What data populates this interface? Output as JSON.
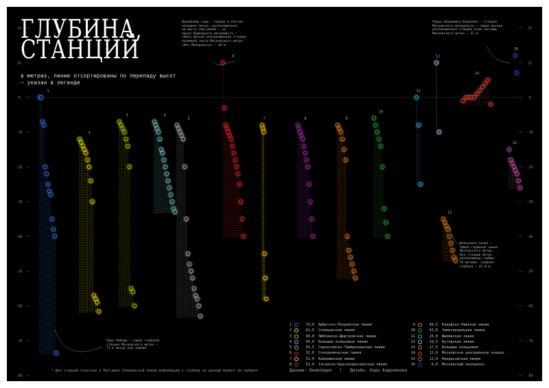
{
  "title_line1": "ГЛУБИНА,",
  "title_line2": "СТАНЦИЙ",
  "subtitle": "в метрах, линии отсортированы по перепаду высот — указан в легенде",
  "annotations": {
    "vorobyovy": "Воробьёвы горы — первая в России\nназемная метро, расположенная\nна мосту над рекой — на\nярусе Лужнецкого метромоста —\nсамая высоко расположенная станция\nназемной части Московского метро\n(без Монорельса) — 10 м",
    "korolyova": "Улица Академика Королёва — станция\nМосковского монорельса — самая высоко\nрасположенная станция всей системы\nМосковского метро — 12 м",
    "park_pobedy": "Парк Победы — самая глубокая\nстанция Московского метро —\n73,6 метра под землёй",
    "koltsevaya": "Кольцевая линия —\nсамая глубокая линия\nМосковского метро.\nВсе станции метро\nрасположены глубже\n35 метров. Средняя\nглубина — 41,0 м"
  },
  "footnote": "* Для станций Спасская и Пыхтящая Солнцевской линии информации о глубине на данный момент не найдено",
  "credits_data": "Данные: Википедия",
  "credits_design": "Дизайн: Надя Андриянова",
  "legend": [
    {
      "num": "1",
      "value": "73,6",
      "name": "Арбатско-Покровская линия",
      "color": "#3b6fd9"
    },
    {
      "num": "2",
      "value": "61,6",
      "name": "Солнцевская линия",
      "color": "#f2e200"
    },
    {
      "num": "3",
      "value": "60,0",
      "name": "Люблинско-Дмитровская линия",
      "color": "#b5d900"
    },
    {
      "num": "4",
      "value": "56,0",
      "name": "Большая кольцевая линия",
      "color": "#7ec8c8"
    },
    {
      "num": "5",
      "value": "55,5",
      "name": "Серпуховско-Тимирязевская линия",
      "color": "#b4b4b4"
    },
    {
      "num": "6",
      "value": "52,0",
      "name": "Сокольническая линия",
      "color": "#e8262c"
    },
    {
      "num": "7",
      "value": "51,0",
      "name": "Калининская линия",
      "color": "#ffcf00"
    },
    {
      "num": "8",
      "value": "51,0",
      "name": "Таганско-Краснопресненская линия",
      "color": "#9a2fa0"
    },
    {
      "num": "9",
      "value": "46,5",
      "name": "Калужско-Рижская линия",
      "color": "#f07e20"
    },
    {
      "num": "10",
      "value": "42,0",
      "name": "Замоскворецкая линия",
      "color": "#2d9e47"
    },
    {
      "num": "11",
      "value": "25,0",
      "name": "Филёвская линия",
      "color": "#29b8e6"
    },
    {
      "num": "12",
      "value": "19,5",
      "name": "Бутовская линия",
      "color": "#a8c5e8"
    },
    {
      "num": "13",
      "value": "17,5",
      "name": "Большая кольцевая",
      "color": "#e08020"
    },
    {
      "num": "14",
      "value": "12,0",
      "name": "Московское центральное кольцо",
      "color": "#e8453c"
    },
    {
      "num": "15",
      "value": "12,0",
      "name": "Некрасовская линия",
      "color": "#cc55aa"
    },
    {
      "num": "16",
      "value": "6,0",
      "name": "Московский монорельс",
      "color": "#2a4ab0"
    }
  ],
  "chart_data": {
    "type": "scatter",
    "ylim": [
      -80,
      25
    ],
    "yticks": [
      "20",
      "10",
      "0",
      "-10",
      "-20",
      "-30",
      "-40",
      "-50",
      "-60",
      "-70",
      "-80"
    ],
    "series": [
      {
        "name": "1",
        "color": "#3b6fd9",
        "values": [
          0,
          0,
          -7,
          -8,
          -20,
          -22,
          -25,
          -27,
          -28,
          -35,
          -38,
          -40,
          -73.6
        ]
      },
      {
        "name": "2",
        "color": "#f2e200",
        "values": [
          -12,
          -13,
          -14,
          -15,
          -16,
          -18,
          -20,
          -24,
          -30,
          -57,
          -58,
          -59,
          -61.6
        ]
      },
      {
        "name": "3",
        "color": "#b5d900",
        "values": [
          -7,
          -8,
          -9,
          -10,
          -12,
          -14,
          -20,
          -55,
          -56,
          -60
        ]
      },
      {
        "name": "4",
        "color": "#7ec8c8",
        "values": [
          -7,
          -8,
          -9,
          -10,
          -12,
          -15,
          -16,
          -18,
          -20,
          -22,
          -24,
          -26,
          -28,
          -30,
          -32,
          -33
        ]
      },
      {
        "name": "5",
        "color": "#b4b4b4",
        "values": [
          -8,
          -9,
          -10,
          -11,
          -12,
          -20,
          -35,
          -45,
          -48,
          -50,
          -52,
          -55,
          -57,
          -58,
          -60,
          -63
        ]
      },
      {
        "name": "6",
        "color": "#e8262c",
        "values": [
          10,
          -3,
          -8,
          -9,
          -10,
          -11,
          -12,
          -14,
          -16,
          -18,
          -20,
          -22,
          -25,
          -30,
          -35,
          -40
        ]
      },
      {
        "name": "7",
        "color": "#ffcf00",
        "values": [
          -8,
          -9,
          -10,
          -45,
          -52,
          -58
        ]
      },
      {
        "name": "8",
        "color": "#9a2fa0",
        "values": [
          -8,
          -9,
          -10,
          -11,
          -12,
          -14,
          -16,
          -18,
          -20,
          -25,
          -30,
          -35,
          -40
        ]
      },
      {
        "name": "9",
        "color": "#f07e20",
        "values": [
          -8,
          -9,
          -10,
          -12,
          -15,
          -18,
          -40,
          -44,
          -46,
          -48,
          -50,
          -52
        ]
      },
      {
        "name": "10",
        "color": "#2d9e47",
        "values": [
          -6,
          -8,
          -10,
          -12,
          -14,
          -20,
          -32,
          -36,
          -40
        ]
      },
      {
        "name": "11",
        "color": "#29b8e6",
        "values": [
          0,
          -8,
          -25
        ]
      },
      {
        "name": "12",
        "color": "#a8c5e8",
        "values": [
          10,
          -10
        ]
      },
      {
        "name": "13",
        "color": "#e08020",
        "values": [
          -35,
          -36,
          -37,
          -38,
          -40,
          -42,
          -44,
          -46,
          -47
        ]
      },
      {
        "name": "14",
        "color": "#e8453c",
        "values": [
          -1,
          0,
          0,
          0,
          0,
          1,
          2,
          3,
          4,
          5,
          -2
        ]
      },
      {
        "name": "15",
        "color": "#cc55aa",
        "values": [
          -15,
          -18,
          -19,
          -20,
          -21,
          -22,
          -24,
          -26
        ]
      },
      {
        "name": "16",
        "color": "#2a4ab0",
        "values": [
          12,
          7
        ]
      }
    ]
  }
}
